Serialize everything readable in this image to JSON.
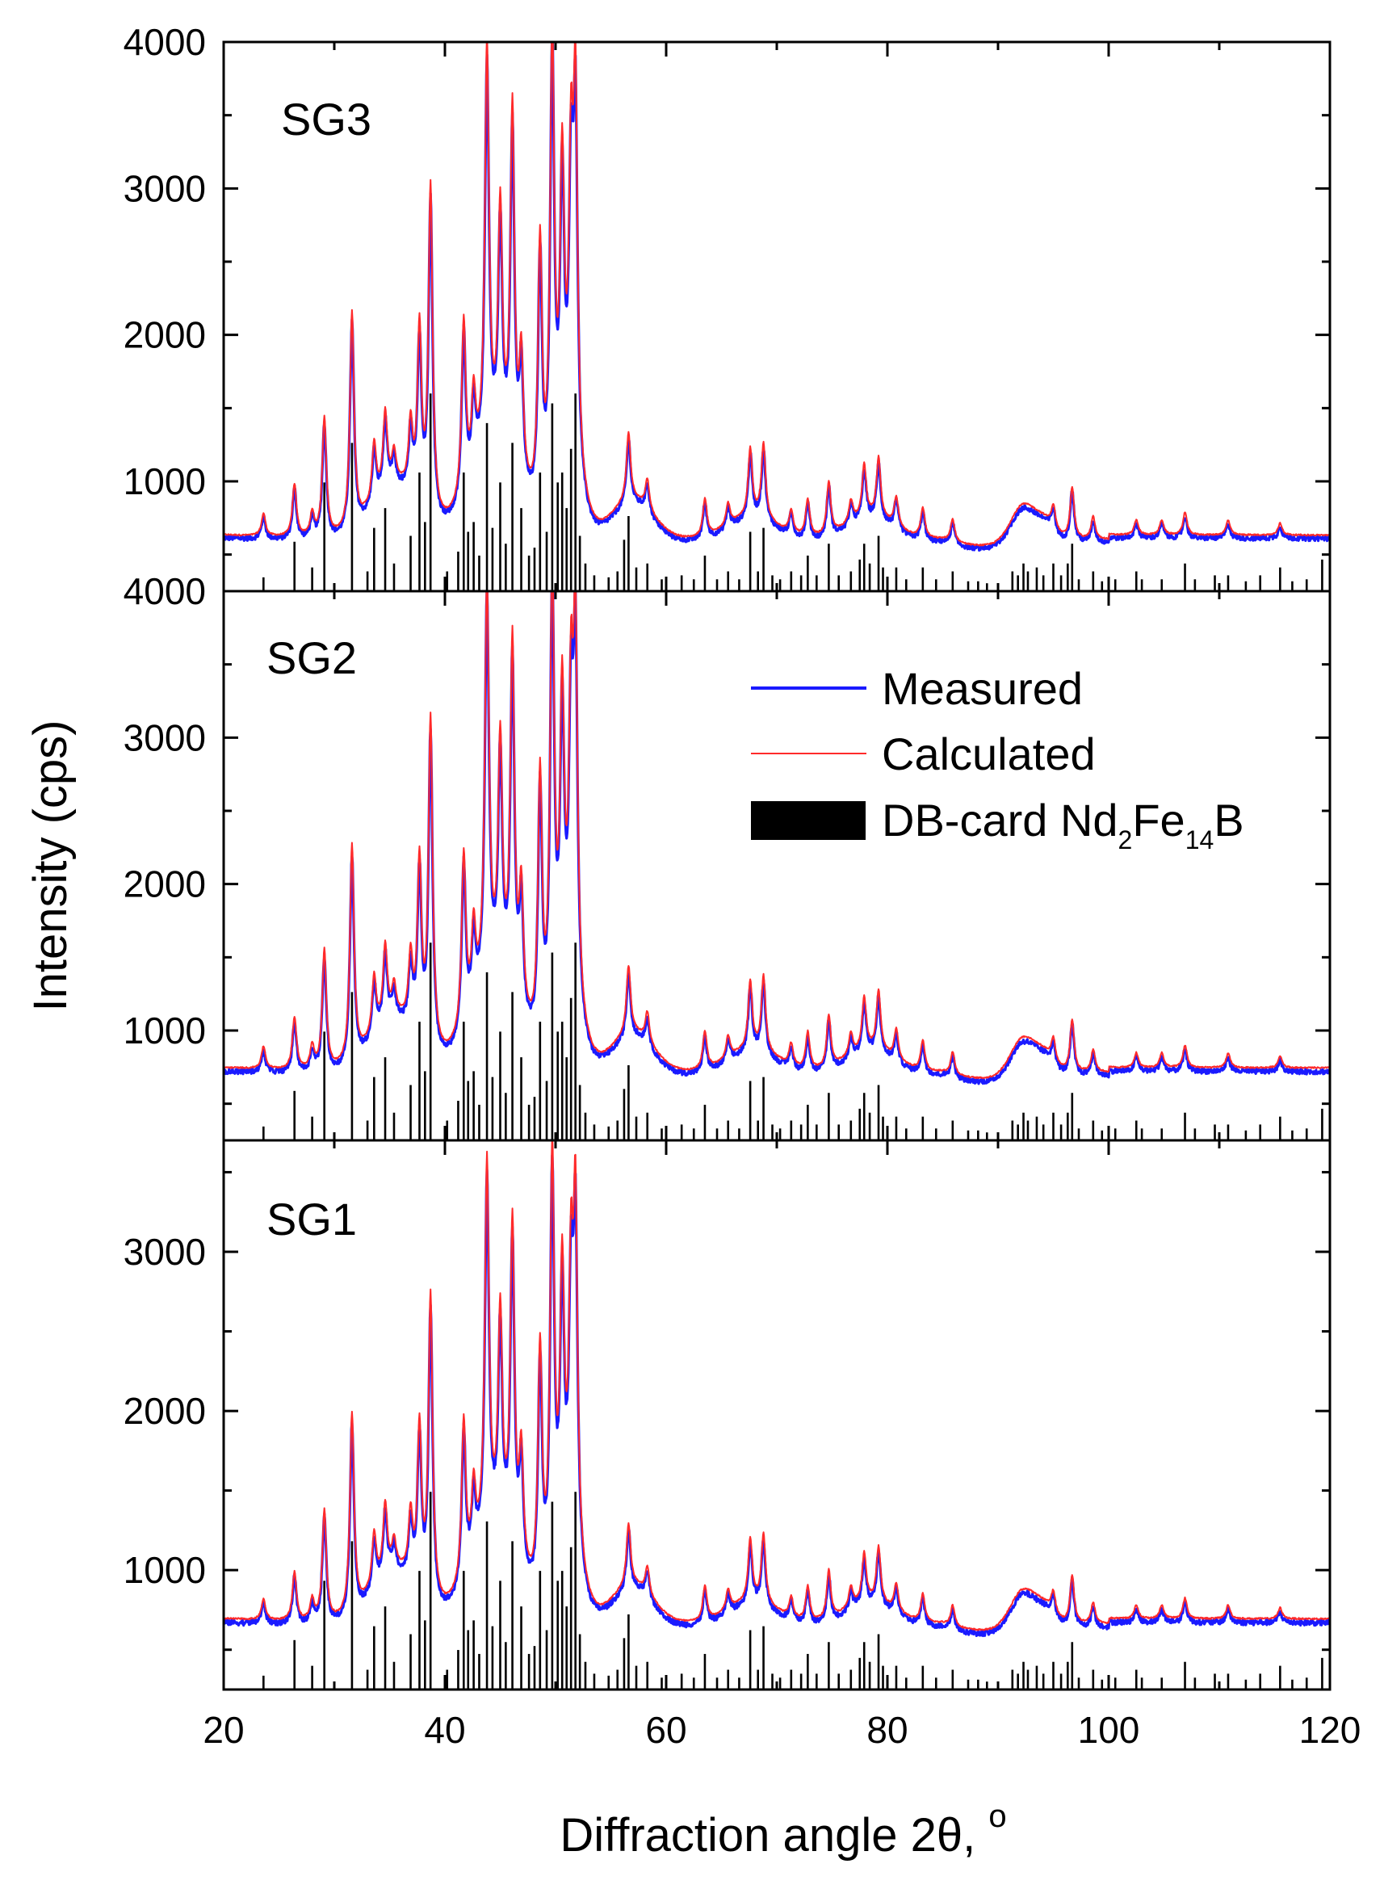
{
  "chart_data": {
    "type": "line",
    "description": "Stacked XRD patterns with measured, calculated and reference stick pattern",
    "xlabel": "Diffraction angle 2θ,",
    "xlabel_unit": "o",
    "ylabel": "Intensity (cps)",
    "xlim": [
      20,
      120
    ],
    "xticks": [
      20,
      40,
      60,
      80,
      100,
      120
    ],
    "legend": {
      "position": "middle-panel-right",
      "entries": [
        {
          "label": "Measured",
          "color": "#1a1aff",
          "style": "line"
        },
        {
          "label": "Calculated",
          "color": "#ff2a2a",
          "style": "line"
        },
        {
          "label_main": "DB-card Nd",
          "sub1": "2",
          "mid": "Fe",
          "sub2": "14",
          "tail": "B",
          "color": "#000000",
          "style": "box"
        }
      ]
    },
    "panels": [
      {
        "name": "SG3",
        "ylim": [
          250,
          4000
        ],
        "yticks": [
          1000,
          2000,
          3000,
          4000
        ],
        "baseline": 590,
        "peak_scale": 1.0,
        "bump_scale": 1.0
      },
      {
        "name": "SG2",
        "ylim": [
          250,
          4000
        ],
        "yticks": [
          1000,
          2000,
          3000,
          4000
        ],
        "baseline": 700,
        "peak_scale": 1.0,
        "bump_scale": 1.0
      },
      {
        "name": "SG1",
        "ylim": [
          250,
          3700
        ],
        "yticks": [
          1000,
          2000,
          3000
        ],
        "baseline": 650,
        "peak_scale": 0.85,
        "bump_scale": 0.9
      }
    ],
    "peaks": [
      [
        23.6,
        150
      ],
      [
        26.4,
        350
      ],
      [
        28.0,
        150
      ],
      [
        29.1,
        800
      ],
      [
        31.6,
        1450
      ],
      [
        33.6,
        380
      ],
      [
        34.6,
        500
      ],
      [
        35.4,
        200
      ],
      [
        36.9,
        450
      ],
      [
        37.7,
        1150
      ],
      [
        38.7,
        2200
      ],
      [
        41.7,
        1150
      ],
      [
        42.6,
        500
      ],
      [
        43.8,
        2700
      ],
      [
        45.0,
        1550
      ],
      [
        46.1,
        2350
      ],
      [
        46.9,
        800
      ],
      [
        48.6,
        1750
      ],
      [
        49.7,
        3000
      ],
      [
        50.6,
        1900
      ],
      [
        51.4,
        1800
      ],
      [
        51.8,
        2450
      ],
      [
        56.6,
        450
      ],
      [
        58.3,
        200
      ],
      [
        63.5,
        250
      ],
      [
        65.6,
        150
      ],
      [
        67.6,
        450
      ],
      [
        68.8,
        500
      ],
      [
        71.3,
        150
      ],
      [
        72.8,
        250
      ],
      [
        74.7,
        350
      ],
      [
        76.7,
        150
      ],
      [
        77.9,
        350
      ],
      [
        79.2,
        400
      ],
      [
        80.8,
        200
      ],
      [
        83.2,
        200
      ],
      [
        85.9,
        150
      ],
      [
        95.0,
        150
      ],
      [
        96.7,
        350
      ],
      [
        98.6,
        150
      ],
      [
        102.5,
        100
      ],
      [
        104.8,
        100
      ],
      [
        106.9,
        150
      ],
      [
        110.8,
        100
      ],
      [
        115.5,
        80
      ]
    ],
    "bumps": [
      [
        35.5,
        350,
        3.0
      ],
      [
        44.5,
        600,
        3.0
      ],
      [
        51.0,
        500,
        1.6
      ],
      [
        57.0,
        250,
        2.5
      ],
      [
        67.8,
        150,
        3.0
      ],
      [
        78.5,
        150,
        3.0
      ],
      [
        92.3,
        230,
        1.6
      ],
      [
        94.3,
        100,
        1.2
      ]
    ],
    "sticks": [
      [
        23.6,
        7
      ],
      [
        26.4,
        25
      ],
      [
        28.0,
        12
      ],
      [
        29.1,
        55
      ],
      [
        31.6,
        75
      ],
      [
        33.0,
        10
      ],
      [
        33.6,
        32
      ],
      [
        34.6,
        42
      ],
      [
        35.4,
        14
      ],
      [
        36.9,
        28
      ],
      [
        37.7,
        60
      ],
      [
        38.2,
        35
      ],
      [
        38.7,
        100
      ],
      [
        40.2,
        10
      ],
      [
        41.2,
        20
      ],
      [
        41.7,
        60
      ],
      [
        42.1,
        30
      ],
      [
        42.6,
        35
      ],
      [
        43.1,
        18
      ],
      [
        43.8,
        85
      ],
      [
        44.3,
        32
      ],
      [
        45.0,
        55
      ],
      [
        45.5,
        24
      ],
      [
        46.1,
        75
      ],
      [
        46.9,
        42
      ],
      [
        47.6,
        18
      ],
      [
        48.1,
        22
      ],
      [
        48.6,
        60
      ],
      [
        49.2,
        30
      ],
      [
        49.7,
        95
      ],
      [
        50.2,
        55
      ],
      [
        50.6,
        60
      ],
      [
        51.0,
        42
      ],
      [
        51.4,
        72
      ],
      [
        51.8,
        100
      ],
      [
        52.2,
        28
      ],
      [
        52.7,
        14
      ],
      [
        53.5,
        8
      ],
      [
        54.8,
        7
      ],
      [
        55.6,
        10
      ],
      [
        56.2,
        26
      ],
      [
        56.6,
        38
      ],
      [
        57.3,
        12
      ],
      [
        58.3,
        14
      ],
      [
        59.6,
        6
      ],
      [
        61.4,
        8
      ],
      [
        62.5,
        6
      ],
      [
        63.5,
        18
      ],
      [
        64.6,
        6
      ],
      [
        65.6,
        10
      ],
      [
        66.6,
        6
      ],
      [
        67.6,
        30
      ],
      [
        68.3,
        10
      ],
      [
        68.8,
        32
      ],
      [
        69.6,
        8
      ],
      [
        70.3,
        6
      ],
      [
        71.3,
        10
      ],
      [
        72.2,
        8
      ],
      [
        72.8,
        18
      ],
      [
        73.6,
        8
      ],
      [
        74.7,
        24
      ],
      [
        75.6,
        8
      ],
      [
        76.7,
        10
      ],
      [
        77.5,
        16
      ],
      [
        77.9,
        24
      ],
      [
        78.4,
        14
      ],
      [
        79.2,
        28
      ],
      [
        79.6,
        12
      ],
      [
        80.8,
        12
      ],
      [
        81.7,
        6
      ],
      [
        83.2,
        12
      ],
      [
        84.4,
        6
      ],
      [
        85.9,
        10
      ],
      [
        87.3,
        5
      ],
      [
        88.2,
        5
      ],
      [
        89.0,
        4
      ],
      [
        91.3,
        10
      ],
      [
        91.8,
        8
      ],
      [
        92.3,
        14
      ],
      [
        92.7,
        10
      ],
      [
        93.5,
        12
      ],
      [
        94.1,
        8
      ],
      [
        95.0,
        14
      ],
      [
        95.7,
        8
      ],
      [
        96.3,
        14
      ],
      [
        96.7,
        24
      ],
      [
        97.3,
        6
      ],
      [
        98.6,
        10
      ],
      [
        99.4,
        5
      ],
      [
        100.6,
        6
      ],
      [
        102.5,
        10
      ],
      [
        103.0,
        6
      ],
      [
        104.8,
        6
      ],
      [
        106.9,
        14
      ],
      [
        107.8,
        6
      ],
      [
        109.6,
        8
      ],
      [
        110.8,
        8
      ],
      [
        112.4,
        5
      ],
      [
        113.7,
        8
      ],
      [
        115.5,
        12
      ],
      [
        116.6,
        5
      ],
      [
        117.9,
        6
      ],
      [
        119.3,
        16
      ]
    ]
  }
}
